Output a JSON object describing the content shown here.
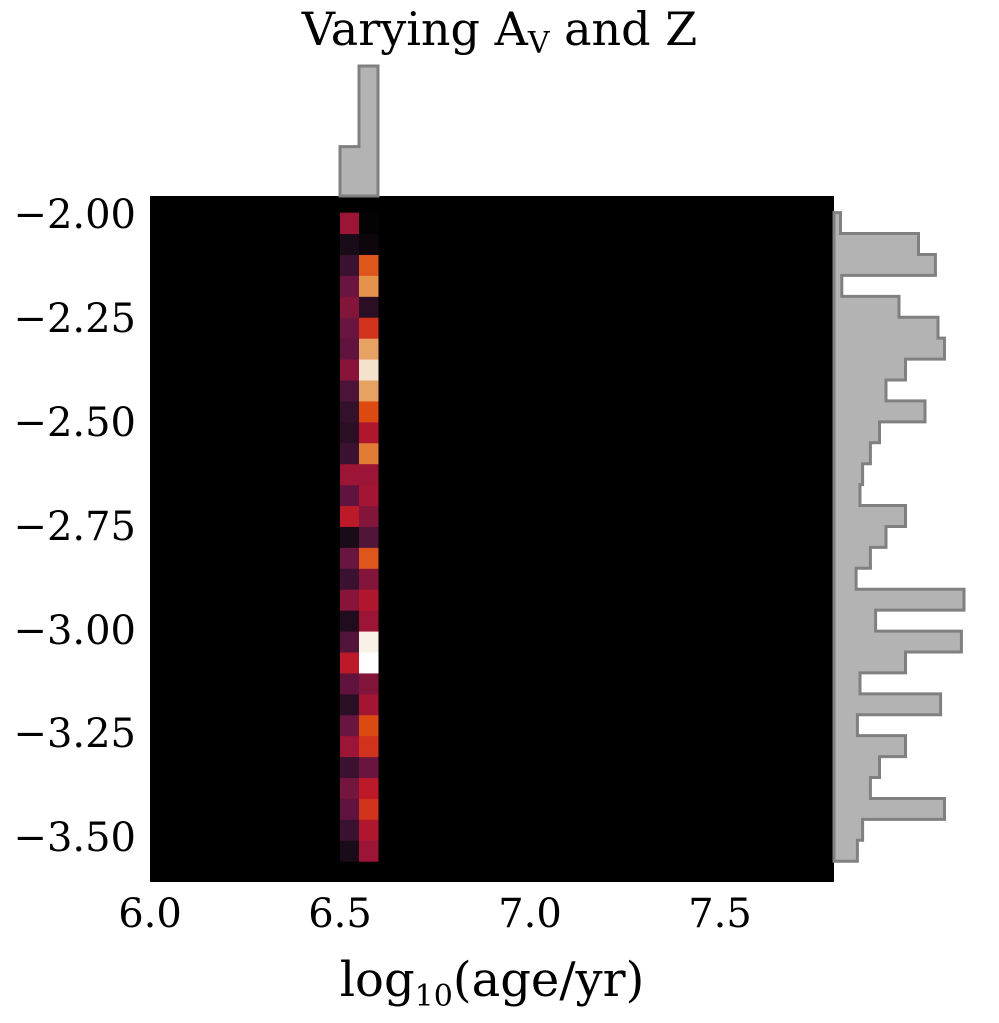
{
  "chart_data": {
    "type": "heatmap",
    "title": {
      "main": "Varying A",
      "sub": "V",
      "tail": " and Z"
    },
    "xlabel": {
      "main": "log",
      "sub": "10",
      "tail": "(age/yr)"
    },
    "ylabel": "",
    "xlim": [
      6.0,
      7.8
    ],
    "ylim": [
      -3.6,
      -1.95
    ],
    "xticks": [
      6.0,
      6.5,
      7.0,
      7.5
    ],
    "xtick_labels": [
      "6.0",
      "6.5",
      "7.0",
      "7.5"
    ],
    "yticks": [
      -2.0,
      -2.25,
      -2.5,
      -2.75,
      -3.0,
      -3.25,
      -3.5
    ],
    "ytick_labels": [
      "−2.00",
      "−2.25",
      "−2.50",
      "−2.75",
      "−3.00",
      "−3.25",
      "−3.50"
    ],
    "x_bin_edges": [
      6.5,
      6.55,
      6.6
    ],
    "y_bin_edges": [
      -3.55,
      -1.99
    ],
    "y_bin_count": 31,
    "colormap": [
      "#000000",
      "#1a0b18",
      "#3a1230",
      "#6a1540",
      "#9c1436",
      "#c41a26",
      "#dc4a12",
      "#e4883e",
      "#e8bc88",
      "#f4e2cc",
      "#ffffff"
    ],
    "grid": false,
    "heatmap_values": {
      "col_6.525": [
        0.1,
        0.2,
        0.28,
        0.32,
        0.2,
        0.4,
        0.3,
        0.15,
        0.28,
        0.48,
        0.25,
        0.12,
        0.36,
        0.2,
        0.3,
        0.1,
        0.48,
        0.28,
        0.4,
        0.2,
        0.15,
        0.18,
        0.24,
        0.36,
        0.28,
        0.3,
        0.35,
        0.3,
        0.2,
        0.1,
        0.4
      ],
      "col_6.575": [
        0.4,
        0.45,
        0.55,
        0.48,
        0.3,
        0.55,
        0.6,
        0.42,
        0.35,
        1.0,
        0.95,
        0.4,
        0.45,
        0.35,
        0.62,
        0.25,
        0.35,
        0.42,
        0.4,
        0.68,
        0.45,
        0.6,
        0.75,
        0.9,
        0.75,
        0.55,
        0.15,
        0.72,
        0.62,
        0.05,
        0.02
      ]
    },
    "marginal_x": {
      "bin_edges": [
        6.5,
        6.55,
        6.6
      ],
      "counts": [
        0.38,
        1.0
      ],
      "color": "#b3b3b3",
      "edge": "#808080"
    },
    "marginal_y": {
      "bin_edges_from_top": [
        -1.99,
        -3.55
      ],
      "counts": [
        0.05,
        0.65,
        0.78,
        0.06,
        0.5,
        0.8,
        0.85,
        0.55,
        0.4,
        0.7,
        0.35,
        0.28,
        0.22,
        0.2,
        0.55,
        0.4,
        0.28,
        0.17,
        1.0,
        0.32,
        0.98,
        0.55,
        0.2,
        0.82,
        0.18,
        0.55,
        0.35,
        0.28,
        0.85,
        0.22,
        0.18
      ],
      "color": "#b3b3b3",
      "edge": "#808080"
    }
  }
}
